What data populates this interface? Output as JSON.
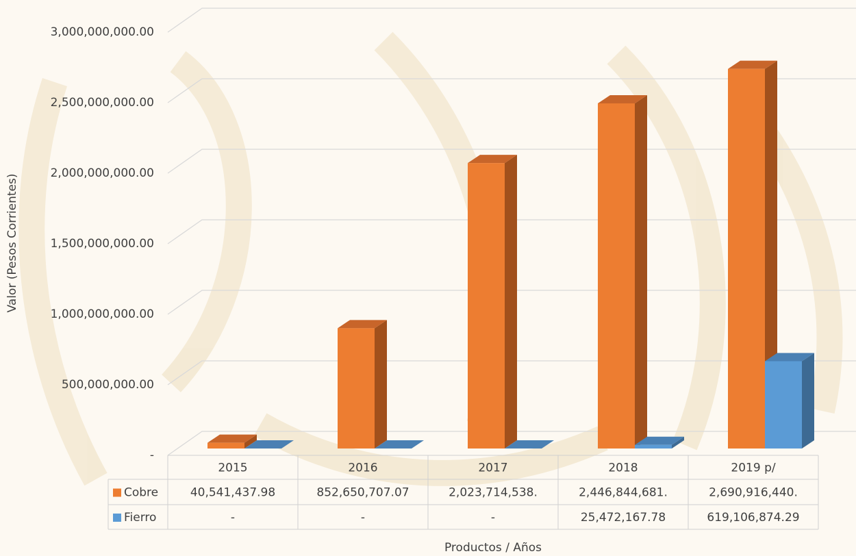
{
  "chart_data": {
    "type": "bar3d",
    "categories": [
      "2015",
      "2016",
      "2017",
      "2018",
      "2019 p/"
    ],
    "series": [
      {
        "name": "Cobre",
        "color": "#ed7d31",
        "side": "#a1501c",
        "top": "#c8652a",
        "values": [
          40541437.98,
          852650707.07,
          2023714538,
          2446844681,
          2690916440
        ],
        "value_labels": [
          "40,541,437.98",
          "852,650,707.07",
          "2,023,714,538.",
          "2,446,844,681.",
          "2,690,916,440."
        ]
      },
      {
        "name": "Fierro",
        "color": "#5b9bd5",
        "side": "#3d6a93",
        "top": "#4a80b3",
        "values": [
          0,
          0,
          0,
          25472167.78,
          619106874.29
        ],
        "value_labels": [
          "-",
          "-",
          "-",
          "25,472,167.78",
          "619,106,874.29"
        ]
      }
    ],
    "ylim": [
      0,
      3000000000
    ],
    "yticks": [
      {
        "value": 0,
        "label": "-"
      },
      {
        "value": 500000000,
        "label": "500,000,000.00"
      },
      {
        "value": 1000000000,
        "label": "1,000,000,000.00"
      },
      {
        "value": 1500000000,
        "label": "1,500,000,000.00"
      },
      {
        "value": 2000000000,
        "label": "2,000,000,000.00"
      },
      {
        "value": 2500000000,
        "label": "2,500,000,000.00"
      },
      {
        "value": 3000000000,
        "label": "3,000,000,000.00"
      }
    ],
    "ylabel": "Valor (Pesos Corrientes)",
    "xlabel": "Productos / Años",
    "grid": true
  }
}
